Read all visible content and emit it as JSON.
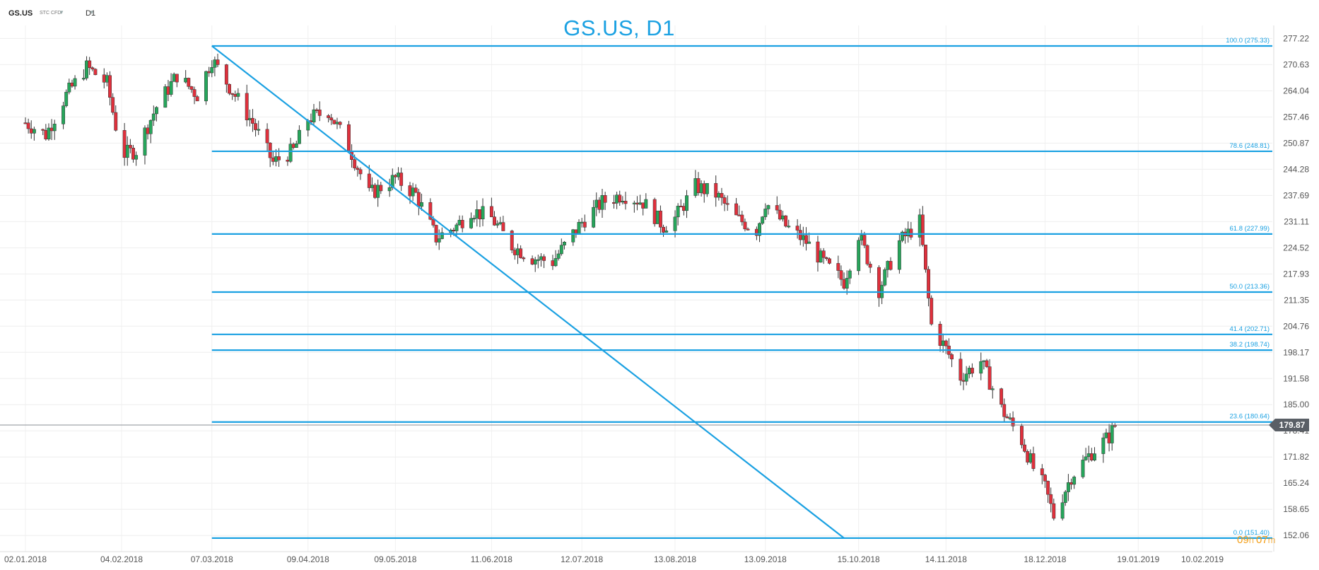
{
  "header": {
    "symbol": "GS.US",
    "instrument_type": "STC CFD",
    "timeframe": "D1",
    "chevron_icon": "chevron-down-icon"
  },
  "countdown": {
    "hours": "09",
    "h_unit": "h",
    "minutes": "07",
    "m_unit": "m"
  },
  "colors": {
    "accent": "#1ba1e2",
    "bull": "#26a65b",
    "bear": "#e0303c",
    "price_line": "#8a8f96",
    "badge": "#5a5f66",
    "countdown": "#f39c12"
  },
  "chart_data": {
    "type": "candlestick",
    "title": "GS.US, D1",
    "y_ticks": [
      "277.22",
      "270.63",
      "264.04",
      "257.46",
      "250.87",
      "244.28",
      "237.69",
      "231.11",
      "224.52",
      "217.93",
      "211.35",
      "204.76",
      "198.17",
      "191.58",
      "185.00",
      "178.41",
      "171.82",
      "165.24",
      "158.65",
      "152.06"
    ],
    "ylim": [
      148,
      280.5
    ],
    "x_ticks": [
      {
        "label": "02.01.2018",
        "date": "2018-01-02"
      },
      {
        "label": "04.02.2018",
        "date": "2018-02-04"
      },
      {
        "label": "07.03.2018",
        "date": "2018-03-07"
      },
      {
        "label": "09.04.2018",
        "date": "2018-04-09"
      },
      {
        "label": "09.05.2018",
        "date": "2018-05-09"
      },
      {
        "label": "11.06.2018",
        "date": "2018-06-11"
      },
      {
        "label": "12.07.2018",
        "date": "2018-07-12"
      },
      {
        "label": "13.08.2018",
        "date": "2018-08-13"
      },
      {
        "label": "13.09.2018",
        "date": "2018-09-13"
      },
      {
        "label": "15.10.2018",
        "date": "2018-10-15"
      },
      {
        "label": "14.11.2018",
        "date": "2018-11-14"
      },
      {
        "label": "18.12.2018",
        "date": "2018-12-18"
      },
      {
        "label": "19.01.2019",
        "date": "2019-01-19"
      },
      {
        "label": "10.02.2019",
        "date": "2019-02-10"
      }
    ],
    "current_price": "179.87",
    "fibonacci": {
      "start_date": "2018-03-07",
      "levels": [
        {
          "label": "100.0 (275.33)",
          "ratio": 100.0,
          "price": 275.33
        },
        {
          "label": "78.6 (248.81)",
          "ratio": 78.6,
          "price": 248.81
        },
        {
          "label": "61.8 (227.99)",
          "ratio": 61.8,
          "price": 227.99
        },
        {
          "label": "50.0 (213.36)",
          "ratio": 50.0,
          "price": 213.36
        },
        {
          "label": "41.4 (202.71)",
          "ratio": 41.4,
          "price": 202.71
        },
        {
          "label": "38.2 (198.74)",
          "ratio": 38.2,
          "price": 198.74
        },
        {
          "label": "23.6 (180.64)",
          "ratio": 23.6,
          "price": 180.64
        },
        {
          "label": "0.0 (151.40)",
          "ratio": 0.0,
          "price": 151.4
        }
      ]
    },
    "trendline": {
      "from": {
        "date": "2018-03-07",
        "price": 275.33
      },
      "to": {
        "date": "2018-10-10",
        "price": 151.4
      }
    },
    "candle_closes": [
      {
        "date": "2018-01-02",
        "close": 256
      },
      {
        "date": "2018-01-09",
        "close": 253
      },
      {
        "date": "2018-01-16",
        "close": 263
      },
      {
        "date": "2018-01-23",
        "close": 270
      },
      {
        "date": "2018-01-30",
        "close": 266
      },
      {
        "date": "2018-02-04",
        "close": 248
      },
      {
        "date": "2018-02-09",
        "close": 249
      },
      {
        "date": "2018-02-16",
        "close": 260
      },
      {
        "date": "2018-02-23",
        "close": 268
      },
      {
        "date": "2018-03-02",
        "close": 263
      },
      {
        "date": "2018-03-07",
        "close": 272
      },
      {
        "date": "2018-03-14",
        "close": 264
      },
      {
        "date": "2018-03-21",
        "close": 256
      },
      {
        "date": "2018-03-28",
        "close": 246
      },
      {
        "date": "2018-04-04",
        "close": 249
      },
      {
        "date": "2018-04-09",
        "close": 257
      },
      {
        "date": "2018-04-16",
        "close": 259
      },
      {
        "date": "2018-04-23",
        "close": 250
      },
      {
        "date": "2018-04-30",
        "close": 238
      },
      {
        "date": "2018-05-09",
        "close": 242
      },
      {
        "date": "2018-05-16",
        "close": 238
      },
      {
        "date": "2018-05-23",
        "close": 227
      },
      {
        "date": "2018-05-30",
        "close": 230
      },
      {
        "date": "2018-06-04",
        "close": 234
      },
      {
        "date": "2018-06-11",
        "close": 232
      },
      {
        "date": "2018-06-18",
        "close": 225
      },
      {
        "date": "2018-06-25",
        "close": 222
      },
      {
        "date": "2018-07-02",
        "close": 221
      },
      {
        "date": "2018-07-09",
        "close": 228
      },
      {
        "date": "2018-07-12",
        "close": 231
      },
      {
        "date": "2018-07-19",
        "close": 236
      },
      {
        "date": "2018-07-26",
        "close": 238
      },
      {
        "date": "2018-08-02",
        "close": 236
      },
      {
        "date": "2018-08-09",
        "close": 230
      },
      {
        "date": "2018-08-13",
        "close": 232
      },
      {
        "date": "2018-08-20",
        "close": 240
      },
      {
        "date": "2018-08-27",
        "close": 238
      },
      {
        "date": "2018-09-03",
        "close": 232
      },
      {
        "date": "2018-09-10",
        "close": 229
      },
      {
        "date": "2018-09-13",
        "close": 236
      },
      {
        "date": "2018-09-20",
        "close": 230
      },
      {
        "date": "2018-09-27",
        "close": 226
      },
      {
        "date": "2018-10-04",
        "close": 220
      },
      {
        "date": "2018-10-10",
        "close": 216
      },
      {
        "date": "2018-10-15",
        "close": 228
      },
      {
        "date": "2018-10-22",
        "close": 214
      },
      {
        "date": "2018-10-29",
        "close": 226
      },
      {
        "date": "2018-11-05",
        "close": 231
      },
      {
        "date": "2018-11-09",
        "close": 205
      },
      {
        "date": "2018-11-14",
        "close": 199
      },
      {
        "date": "2018-11-19",
        "close": 192
      },
      {
        "date": "2018-11-26",
        "close": 196
      },
      {
        "date": "2018-12-03",
        "close": 184
      },
      {
        "date": "2018-12-10",
        "close": 176
      },
      {
        "date": "2018-12-14",
        "close": 169
      },
      {
        "date": "2018-12-18",
        "close": 164
      },
      {
        "date": "2018-12-21",
        "close": 157
      },
      {
        "date": "2018-12-27",
        "close": 167
      },
      {
        "date": "2019-01-03",
        "close": 173
      },
      {
        "date": "2019-01-09",
        "close": 177
      },
      {
        "date": "2019-01-11",
        "close": 179.87
      }
    ]
  }
}
